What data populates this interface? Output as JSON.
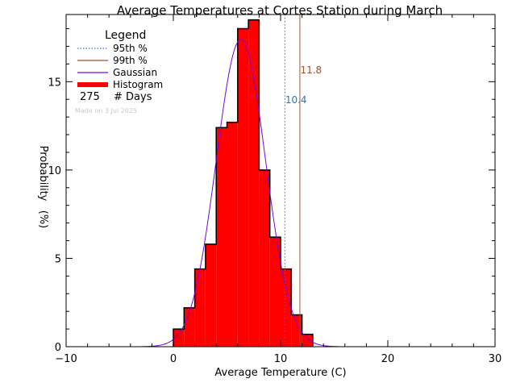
{
  "chart_data": {
    "type": "bar",
    "title": "Average Temperatures at Cortes Station during March",
    "xlabel": "Average Temperature (C)",
    "ylabel": "Probability",
    "ylabel_unit": "(%)",
    "xlim": [
      -10,
      30
    ],
    "ylim": [
      0,
      18.8
    ],
    "x_ticks": [
      -10,
      0,
      10,
      20,
      30
    ],
    "x_tick_labels": [
      "−10",
      "0",
      "10",
      "20",
      "30"
    ],
    "y_ticks": [
      0,
      5,
      10,
      15
    ],
    "y_tick_labels": [
      "0",
      "5",
      "10",
      "15"
    ],
    "grid": false,
    "legend": {
      "title": "Legend",
      "position": "top-left",
      "entries": [
        "95th %",
        "99th %",
        "Gaussian",
        "Histogram"
      ],
      "count_value": "275",
      "count_label": "# Days"
    },
    "watermark": "Made on 3 Jul 2025",
    "histogram": {
      "bin_width": 1,
      "bin_starts": [
        0,
        1,
        2,
        3,
        4,
        5,
        6,
        7,
        8,
        9,
        10,
        11,
        12
      ],
      "values": [
        1.0,
        2.2,
        4.4,
        5.8,
        12.4,
        12.7,
        18.0,
        18.5,
        10.0,
        6.2,
        4.4,
        1.8,
        0.7
      ],
      "color": "#ff0000"
    },
    "gaussian": {
      "mean": 6.3,
      "sd": 2.3,
      "peak": 17.4,
      "color": "#7a00e0"
    },
    "percentiles": [
      {
        "name": "95th %",
        "value": 10.4,
        "label": "10.4",
        "color": "#1f77d0",
        "style": "dotted"
      },
      {
        "name": "99th %",
        "value": 11.8,
        "label": "11.8",
        "color": "#a0522d",
        "style": "solid"
      }
    ]
  }
}
